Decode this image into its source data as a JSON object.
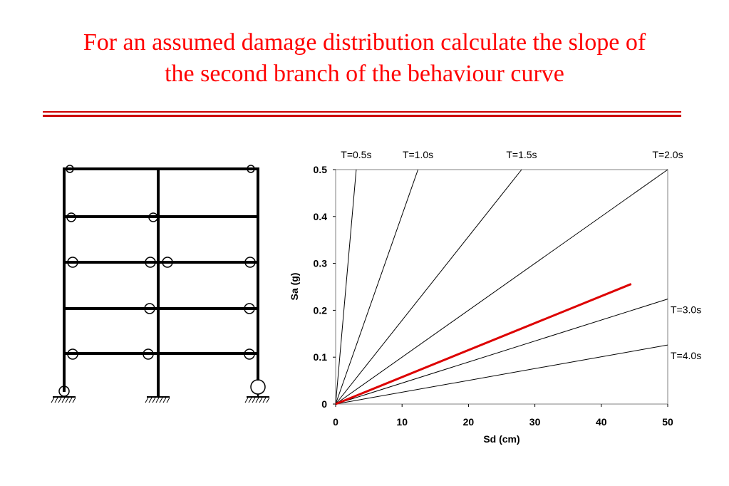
{
  "slide": {
    "title_lines": [
      "For an assumed damage distribution calculate the slope of",
      "the second branch of the behaviour curve"
    ]
  },
  "colors": {
    "title": "#ff0000",
    "rule": "#cc0000",
    "highlight_curve": "#dd0000",
    "frame": "#000000"
  },
  "frame_diagram": {
    "stories": 5,
    "bays": 2,
    "supports": [
      "fixed",
      "fixed",
      "hinged"
    ]
  },
  "chart_data": {
    "type": "line",
    "title": "",
    "xlabel": "Sd  (cm)",
    "ylabel": "Sa  (g)",
    "xlim": [
      0,
      50
    ],
    "ylim": [
      0,
      0.5
    ],
    "xticks": [
      0,
      10,
      20,
      30,
      40,
      50
    ],
    "yticks": [
      0,
      0.1,
      0.2,
      0.3,
      0.4,
      0.5
    ],
    "grid": false,
    "series": [
      {
        "name": "T=0.5s",
        "x": [
          0,
          3.1
        ],
        "y": [
          0,
          0.5
        ]
      },
      {
        "name": "T=1.0s",
        "x": [
          0,
          12.4
        ],
        "y": [
          0,
          0.5
        ]
      },
      {
        "name": "T=1.5s",
        "x": [
          0,
          28.0
        ],
        "y": [
          0,
          0.5
        ]
      },
      {
        "name": "T=2.0s",
        "x": [
          0,
          50
        ],
        "y": [
          0,
          0.5
        ]
      },
      {
        "name": "T=3.0s",
        "x": [
          0,
          50
        ],
        "y": [
          0,
          0.224
        ]
      },
      {
        "name": "T=4.0s",
        "x": [
          0,
          50
        ],
        "y": [
          0,
          0.126
        ]
      },
      {
        "name": "",
        "x": [
          0,
          44.5
        ],
        "y": [
          0,
          0.256
        ]
      }
    ],
    "annotations": [
      "T=0.5s",
      "T=1.0s",
      "T=1.5s",
      "T=2.0s",
      "T=3.0s",
      "T=4.0s"
    ]
  }
}
